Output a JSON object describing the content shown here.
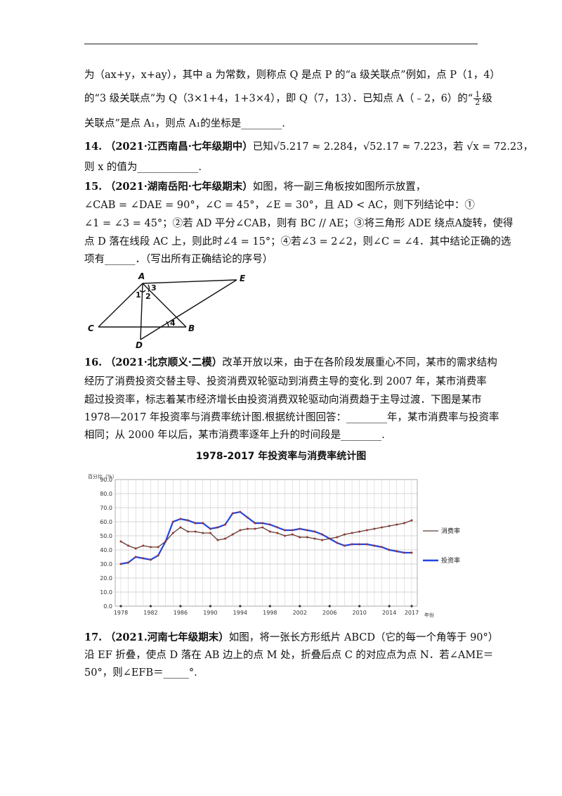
{
  "q13": {
    "line1": "为（ax+y，x+ay），其中 a 为常数，则称点 Q 是点 P 的“a 级关联点”例如，点 P（1，4）",
    "line2": "的“3 级关联点”为 Q（3×1+4，1+3×4），即 Q（7，13）．已知点 A（﹣2，6）的“",
    "frac_num": "1",
    "frac_den": "2",
    "line2_tail": "级",
    "line3": "关联点”是点 A₁，则点 A₁的坐标是________."
  },
  "q14": {
    "number": "14.",
    "source": "（2021·江西南昌·七年级期中）",
    "line1": "已知√5.217 ≈ 2.284，√52.17 ≈ 7.223，若 √x = 72.23，",
    "line2": "则 x 的值为____________."
  },
  "q15": {
    "number": "15.",
    "source": "（2021·湖南岳阳·七年级期末）",
    "line1": "如图，将一副三角板按如图所示放置，",
    "line2": "∠CAB = ∠DAE = 90°，∠C = 45°，∠E = 30°，且 AD < AC，则下列结论中：①",
    "line3": "∠1 = ∠3 = 45°；②若 AD 平分∠CAB，则有 BC // AE；③将三角形 ADE 绕点A旋转，使得",
    "line4": "点 D 落在线段 AC 上，则此时∠4 = 15°；④若∠3 = 2∠2，则∠C = ∠4．其中结论正确的选",
    "line5": "项有______．（写出所有正确结论的序号）",
    "fig_labels": {
      "A": "A",
      "E": "E",
      "C": "C",
      "B": "B",
      "D": "D",
      "a1": "1",
      "a2": "2",
      "a3": "3",
      "a4": "4"
    }
  },
  "q16": {
    "number": "16.",
    "source": "（2021·北京顺义·二模）",
    "line1": "改革开放以来，由于在各阶段发展重心不同，某市的需求结构",
    "line2": "经历了消费投资交替主导、投资消费双轮驱动到消费主导的变化.到 2007 年，某市消费率",
    "line3": "超过投资率，标志着某市经济增长由投资消费双轮驱动向消费趋于主导过渡．下图是某市",
    "line4": "1978—2017 年投资率与消费率统计图.根据统计图回答：________年，某市消费率与投资率",
    "line5": "相同；从 2000 年以后，某市消费率逐年上升的时间段是________."
  },
  "chart_data": {
    "type": "line",
    "title": "1978-2017 年投资率与消费率统计图",
    "ylabel": "百分比（%）",
    "xlabel": "年份",
    "ylim": [
      0,
      90
    ],
    "yticks": [
      "0.0",
      "10.0",
      "20.0",
      "30.0",
      "40.0",
      "50.0",
      "60.0",
      "70.0",
      "80.0",
      "90.0"
    ],
    "xticks": [
      "1978",
      "1982",
      "1986",
      "1990",
      "1994",
      "1998",
      "2002",
      "2006",
      "2010",
      "2014",
      "2017"
    ],
    "x": [
      1978,
      1979,
      1980,
      1981,
      1982,
      1983,
      1984,
      1985,
      1986,
      1987,
      1988,
      1989,
      1990,
      1991,
      1992,
      1993,
      1994,
      1995,
      1996,
      1997,
      1998,
      1999,
      2000,
      2001,
      2002,
      2003,
      2004,
      2005,
      2006,
      2007,
      2008,
      2009,
      2010,
      2011,
      2012,
      2013,
      2014,
      2015,
      2016,
      2017
    ],
    "series": [
      {
        "name": "消费率",
        "color": "#5a3e36",
        "values": [
          46,
          43,
          41,
          43,
          42,
          42,
          46,
          52,
          56,
          53,
          53,
          52,
          52,
          47,
          48,
          51,
          54,
          55,
          55,
          56,
          53,
          52,
          50,
          51,
          49,
          49,
          48,
          47,
          48,
          49,
          51,
          52,
          53,
          54,
          55,
          56,
          57,
          58,
          59,
          61
        ]
      },
      {
        "name": "投资率",
        "color": "#2244dd",
        "values": [
          30,
          31,
          35,
          34,
          33,
          36,
          46,
          60,
          62,
          61,
          59,
          59,
          55,
          56,
          58,
          66,
          67,
          63,
          59,
          59,
          58,
          56,
          54,
          54,
          55,
          54,
          53,
          51,
          48,
          45,
          43,
          44,
          44,
          44,
          43,
          42,
          40,
          39,
          38,
          38
        ]
      }
    ],
    "grid": true,
    "legend": "right"
  },
  "q17": {
    "number": "17.",
    "source": "（2021.河南七年级期末）",
    "line1": "如图，将一张长方形纸片 ABCD（它的每一个角等于 90°）",
    "line2": "沿 EF 折叠，使点 D 落在 AB 边上的点 M 处，折叠后点 C 的对应点为点 N．若∠AME＝",
    "line3": "50°，则∠EFB＝_____°."
  }
}
